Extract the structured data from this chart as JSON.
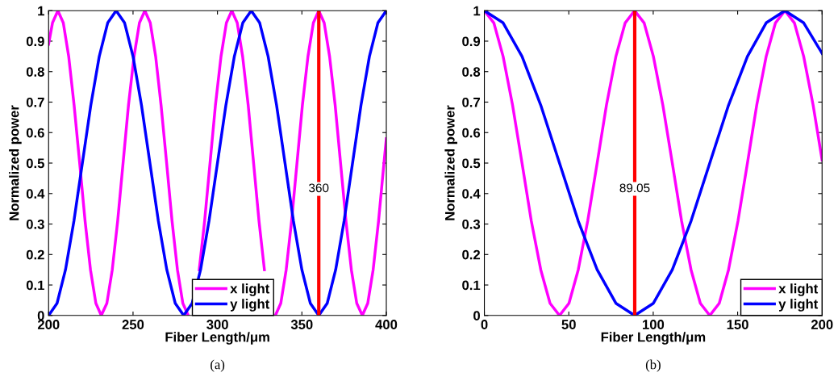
{
  "chart_data": [
    {
      "type": "line",
      "xlabel": "Fiber Length/μm",
      "ylabel": "Normalized power",
      "xlim": [
        200,
        400
      ],
      "ylim": [
        0,
        1
      ],
      "xticks": [
        200,
        250,
        300,
        350,
        400
      ],
      "yticks": [
        0,
        0.1,
        0.2,
        0.3,
        0.4,
        0.5,
        0.6,
        0.7,
        0.8,
        0.9,
        1
      ],
      "grid": false,
      "legend": "bottom",
      "annotations": [
        "(a)"
      ],
      "ref_lines": [
        {
          "axis": "x",
          "value": 360,
          "label": "360",
          "color": "#ff0000"
        }
      ],
      "series": [
        {
          "name": "x light",
          "color": "#ff00ff",
          "x": [
            200,
            202.3,
            205.5,
            208.7,
            211.9,
            215.1,
            218.4,
            221.6,
            224.8,
            228.0,
            231.2,
            234.5,
            237.7,
            240.9,
            244.1,
            247.3,
            250.6,
            253.8,
            257.0,
            260.2,
            263.4,
            266.6,
            269.9,
            273.1,
            276.3,
            279.5,
            282.7,
            286.0,
            289.2,
            292.4,
            295.6,
            298.8,
            302.1,
            305.3,
            308.5,
            311.7,
            314.9,
            318.2,
            321.4,
            324.6,
            327.8,
            331.0,
            334.3,
            337.5,
            340.7,
            343.9,
            347.1,
            350.3,
            353.6,
            356.8,
            360,
            363.2,
            366.4,
            369.7,
            372.9,
            376.1,
            379.3,
            382.5,
            385.8,
            389.0,
            392.2,
            395.4,
            398.6,
            400
          ],
          "values": [
            0.89,
            0.96,
            1,
            0.96,
            0.85,
            0.69,
            0.5,
            0.31,
            0.15,
            0.04,
            0,
            0.04,
            0.15,
            0.31,
            0.5,
            0.69,
            0.85,
            0.96,
            1,
            0.96,
            0.85,
            0.69,
            0.5,
            0.31,
            0.15,
            0.04,
            0,
            null,
            0.15,
            0.31,
            0.5,
            0.69,
            0.85,
            0.96,
            1,
            0.96,
            0.85,
            0.69,
            0.5,
            0.31,
            0.15,
            null,
            0,
            0.04,
            0.15,
            0.31,
            0.5,
            0.69,
            0.85,
            0.96,
            1,
            0.96,
            0.85,
            0.69,
            0.5,
            0.31,
            0.15,
            0.04,
            0,
            0.04,
            0.15,
            0.31,
            0.5,
            0.58
          ]
        },
        {
          "name": "y light",
          "color": "#0000ff",
          "x": [
            200,
            205,
            210,
            215,
            220,
            225,
            230,
            235,
            240,
            245,
            250,
            255,
            260,
            265,
            270,
            275,
            280,
            285,
            290,
            295,
            300,
            305,
            310,
            315,
            320,
            325,
            330,
            335,
            340,
            345,
            350,
            355,
            360,
            365,
            370,
            375,
            380,
            385,
            390,
            395,
            400
          ],
          "values": [
            0,
            0.04,
            0.15,
            0.31,
            0.5,
            0.69,
            0.85,
            0.96,
            1,
            0.96,
            0.85,
            0.69,
            0.5,
            0.31,
            0.15,
            0.04,
            0,
            0.04,
            0.15,
            0.31,
            0.5,
            0.69,
            0.85,
            0.96,
            1,
            0.96,
            0.85,
            0.69,
            0.5,
            0.31,
            0.15,
            0.04,
            0,
            0.04,
            0.15,
            0.31,
            0.5,
            0.69,
            0.85,
            0.96,
            1
          ]
        }
      ]
    },
    {
      "type": "line",
      "xlabel": "Fiber Length/μm",
      "ylabel": "Normalized power",
      "xlim": [
        0,
        200
      ],
      "ylim": [
        0,
        1
      ],
      "xticks": [
        0,
        50,
        100,
        150,
        200
      ],
      "yticks": [
        0,
        0.1,
        0.2,
        0.3,
        0.4,
        0.5,
        0.6,
        0.7,
        0.8,
        0.9,
        1
      ],
      "grid": false,
      "legend": "bottom right",
      "annotations": [
        "(b)"
      ],
      "ref_lines": [
        {
          "axis": "x",
          "value": 89.05,
          "label": "89.05",
          "color": "#ff0000"
        }
      ],
      "series": [
        {
          "name": "x light",
          "color": "#ff00ff",
          "x": [
            0,
            5.6,
            11.1,
            16.7,
            22.3,
            27.8,
            33.4,
            38.9,
            44.5,
            50.1,
            55.6,
            61.2,
            66.8,
            72.3,
            77.9,
            83.4,
            89,
            94.6,
            100.1,
            105.7,
            111.3,
            116.8,
            122.4,
            127.9,
            133.5,
            139.1,
            144.6,
            150.2,
            155.8,
            161.3,
            166.9,
            172.4,
            178,
            183.6,
            189.1,
            194.7,
            200
          ],
          "values": [
            1,
            0.96,
            0.85,
            0.69,
            0.5,
            0.31,
            0.15,
            0.04,
            0,
            0.04,
            0.15,
            0.31,
            0.5,
            0.69,
            0.85,
            0.96,
            1,
            0.96,
            0.85,
            0.69,
            0.5,
            0.31,
            0.15,
            0.04,
            0,
            0.04,
            0.15,
            0.31,
            0.5,
            0.69,
            0.85,
            0.96,
            1,
            0.96,
            0.85,
            0.69,
            0.51
          ]
        },
        {
          "name": "y light",
          "color": "#0000ff",
          "x": [
            0,
            11.1,
            22.3,
            33.4,
            44.5,
            55.6,
            66.8,
            77.9,
            89,
            100.1,
            111.3,
            122.4,
            133.5,
            144.6,
            155.8,
            166.9,
            178,
            189.1,
            200
          ],
          "values": [
            1,
            0.96,
            0.85,
            0.69,
            0.5,
            0.31,
            0.15,
            0.04,
            0,
            0.04,
            0.15,
            0.31,
            0.5,
            0.69,
            0.85,
            0.96,
            1,
            0.96,
            0.86
          ]
        }
      ]
    }
  ]
}
